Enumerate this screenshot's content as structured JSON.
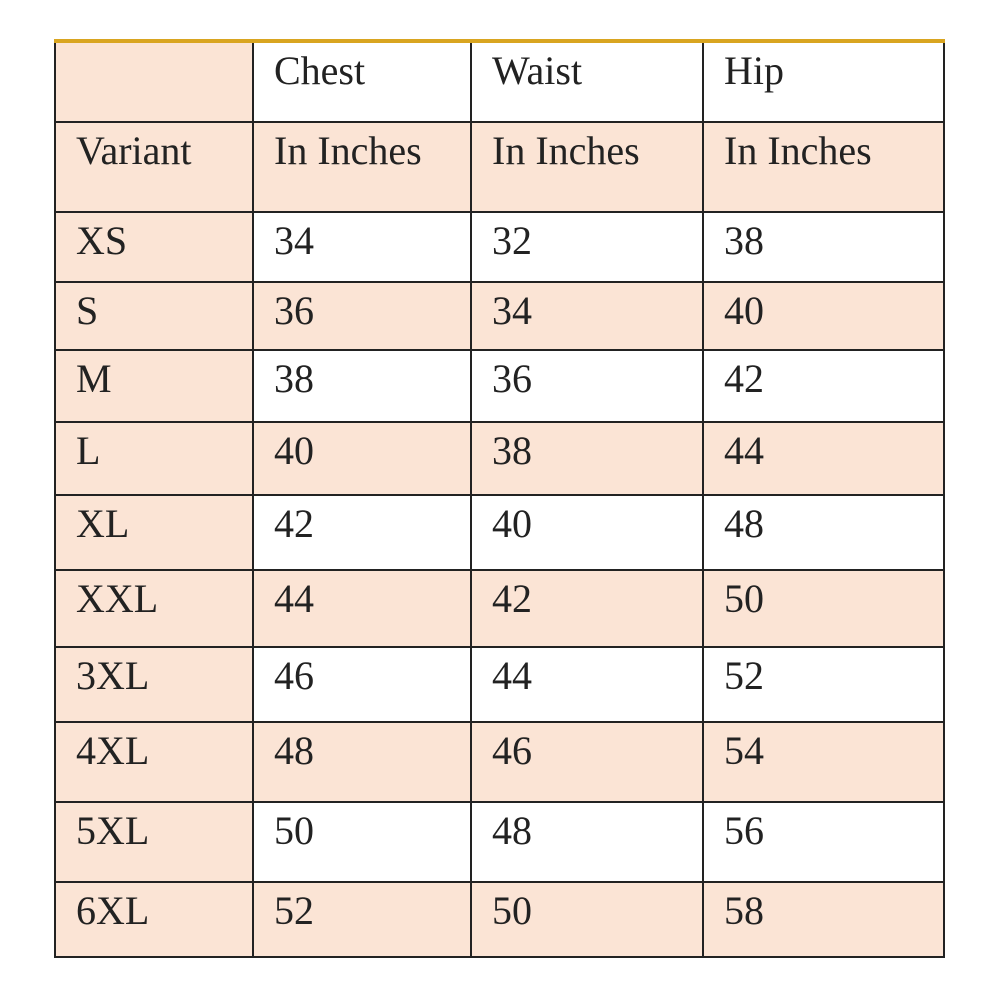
{
  "header": {
    "row1": [
      "",
      "Chest",
      "Waist",
      "Hip"
    ],
    "row2": [
      "Variant",
      "In Inches",
      "In Inches",
      "In Inches"
    ]
  },
  "rows": [
    [
      "XS",
      "34",
      "32",
      "38"
    ],
    [
      "S",
      "36",
      "34",
      "40"
    ],
    [
      "M",
      "38",
      "36",
      "42"
    ],
    [
      "L",
      "40",
      "38",
      "44"
    ],
    [
      "XL",
      "42",
      "40",
      "48"
    ],
    [
      "XXL",
      "44",
      "42",
      "50"
    ],
    [
      "3XL",
      "46",
      "44",
      "52"
    ],
    [
      "4XL",
      "48",
      "46",
      "54"
    ],
    [
      "5XL",
      "50",
      "48",
      "56"
    ],
    [
      "6XL",
      "52",
      "50",
      "58"
    ]
  ],
  "colors": {
    "peach": "#fbe4d5",
    "border_top": "#d9a520"
  }
}
